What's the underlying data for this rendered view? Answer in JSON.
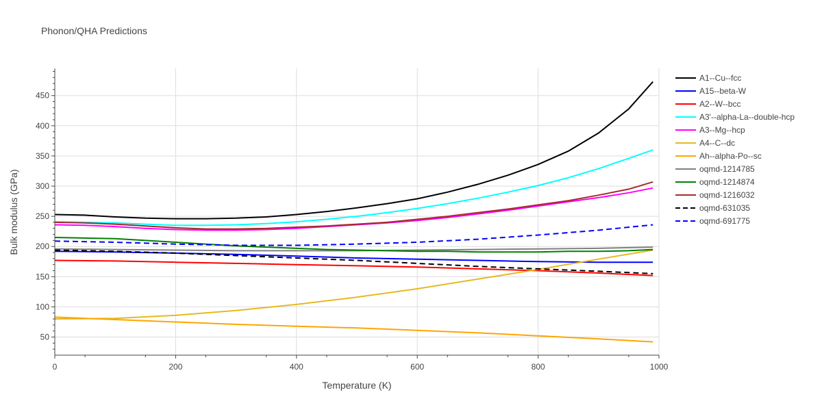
{
  "chart_data": {
    "type": "line",
    "title": "Phonon/QHA Predictions",
    "xlabel": "Temperature (K)",
    "ylabel": "Bulk modulus (GPa)",
    "xlim": [
      0,
      1000
    ],
    "ylim": [
      20,
      495
    ],
    "x_ticks": [
      0,
      200,
      400,
      600,
      800,
      1000
    ],
    "y_ticks": [
      50,
      100,
      150,
      200,
      250,
      300,
      350,
      400,
      450
    ],
    "grid": true,
    "legend_position": "right",
    "series": [
      {
        "name": "A1--Cu--fcc",
        "color": "#000000",
        "dash": "solid",
        "x": [
          0,
          50,
          100,
          150,
          200,
          250,
          300,
          350,
          400,
          450,
          500,
          550,
          600,
          650,
          700,
          750,
          800,
          850,
          900,
          950,
          990
        ],
        "y": [
          253,
          252,
          249,
          247,
          246,
          246,
          247,
          249,
          253,
          258,
          264,
          271,
          279,
          290,
          303,
          318,
          336,
          358,
          388,
          428,
          473
        ]
      },
      {
        "name": "A15--beta-W",
        "color": "#0000ff",
        "dash": "solid",
        "x": [
          0,
          100,
          200,
          300,
          400,
          500,
          600,
          700,
          800,
          900,
          990
        ],
        "y": [
          192,
          191,
          189,
          187,
          184,
          181,
          179,
          177,
          175,
          174,
          174
        ]
      },
      {
        "name": "A2--W--bcc",
        "color": "#ff0000",
        "dash": "solid",
        "x": [
          0,
          100,
          200,
          300,
          400,
          500,
          600,
          700,
          800,
          900,
          990
        ],
        "y": [
          177,
          176,
          174,
          172,
          170,
          168,
          166,
          163,
          160,
          156,
          152
        ]
      },
      {
        "name": "A3'--alpha-La--double-hcp",
        "color": "#00ffff",
        "dash": "solid",
        "x": [
          0,
          50,
          100,
          150,
          200,
          250,
          300,
          350,
          400,
          450,
          500,
          550,
          600,
          650,
          700,
          750,
          800,
          850,
          900,
          950,
          990
        ],
        "y": [
          241,
          240,
          239,
          237,
          235,
          235,
          236,
          238,
          241,
          245,
          250,
          256,
          263,
          271,
          280,
          290,
          301,
          314,
          329,
          346,
          360
        ]
      },
      {
        "name": "A3--Mg--hcp",
        "color": "#ff00ff",
        "dash": "solid",
        "x": [
          0,
          50,
          100,
          150,
          200,
          250,
          300,
          350,
          400,
          450,
          500,
          550,
          600,
          650,
          700,
          750,
          800,
          850,
          900,
          950,
          990
        ],
        "y": [
          236,
          235,
          233,
          230,
          228,
          227,
          227,
          228,
          230,
          233,
          236,
          239,
          243,
          248,
          254,
          260,
          267,
          274,
          281,
          289,
          297
        ]
      },
      {
        "name": "A4--C--dc",
        "color": "#e6b91e",
        "dash": "solid",
        "x": [
          0,
          100,
          200,
          300,
          400,
          500,
          600,
          700,
          800,
          900,
          990
        ],
        "y": [
          80,
          81,
          86,
          94,
          104,
          116,
          130,
          146,
          162,
          179,
          194
        ]
      },
      {
        "name": "Ah--alpha-Po--sc",
        "color": "#ffa500",
        "dash": "solid",
        "x": [
          0,
          100,
          200,
          300,
          400,
          500,
          600,
          700,
          800,
          900,
          990
        ],
        "y": [
          83,
          79,
          75,
          71,
          68,
          65,
          61,
          57,
          52,
          47,
          42
        ]
      },
      {
        "name": "oqmd-1214785",
        "color": "#808080",
        "dash": "solid",
        "x": [
          0,
          100,
          200,
          300,
          400,
          500,
          600,
          700,
          800,
          900,
          990
        ],
        "y": [
          196,
          195,
          194,
          193,
          193,
          193,
          194,
          195,
          196,
          197,
          199
        ]
      },
      {
        "name": "oqmd-1214874",
        "color": "#008000",
        "dash": "solid",
        "x": [
          0,
          50,
          100,
          150,
          200,
          250,
          300,
          350,
          400,
          450,
          500,
          550,
          600,
          650,
          700,
          750,
          800,
          850,
          900,
          950,
          990
        ],
        "y": [
          215,
          214,
          213,
          210,
          207,
          204,
          201,
          199,
          197,
          195,
          194,
          193,
          192,
          192,
          191,
          191,
          191,
          192,
          192,
          193,
          195
        ]
      },
      {
        "name": "oqmd-1216032",
        "color": "#a52a2a",
        "dash": "solid",
        "x": [
          0,
          50,
          100,
          150,
          200,
          250,
          300,
          350,
          400,
          450,
          500,
          550,
          600,
          650,
          700,
          750,
          800,
          850,
          900,
          950,
          990
        ],
        "y": [
          240,
          239,
          237,
          234,
          231,
          229,
          229,
          230,
          232,
          234,
          237,
          240,
          245,
          250,
          256,
          262,
          269,
          276,
          285,
          295,
          307
        ]
      },
      {
        "name": "oqmd-631035",
        "color": "#000000",
        "dash": "dash",
        "x": [
          0,
          100,
          200,
          300,
          400,
          500,
          600,
          700,
          800,
          900,
          990
        ],
        "y": [
          194,
          192,
          189,
          185,
          181,
          177,
          172,
          167,
          163,
          159,
          155
        ]
      },
      {
        "name": "oqmd-691775",
        "color": "#0000ff",
        "dash": "dash",
        "x": [
          0,
          100,
          200,
          300,
          400,
          500,
          600,
          700,
          800,
          900,
          990
        ],
        "y": [
          209,
          207,
          204,
          202,
          202,
          204,
          207,
          212,
          219,
          227,
          236
        ]
      }
    ]
  }
}
